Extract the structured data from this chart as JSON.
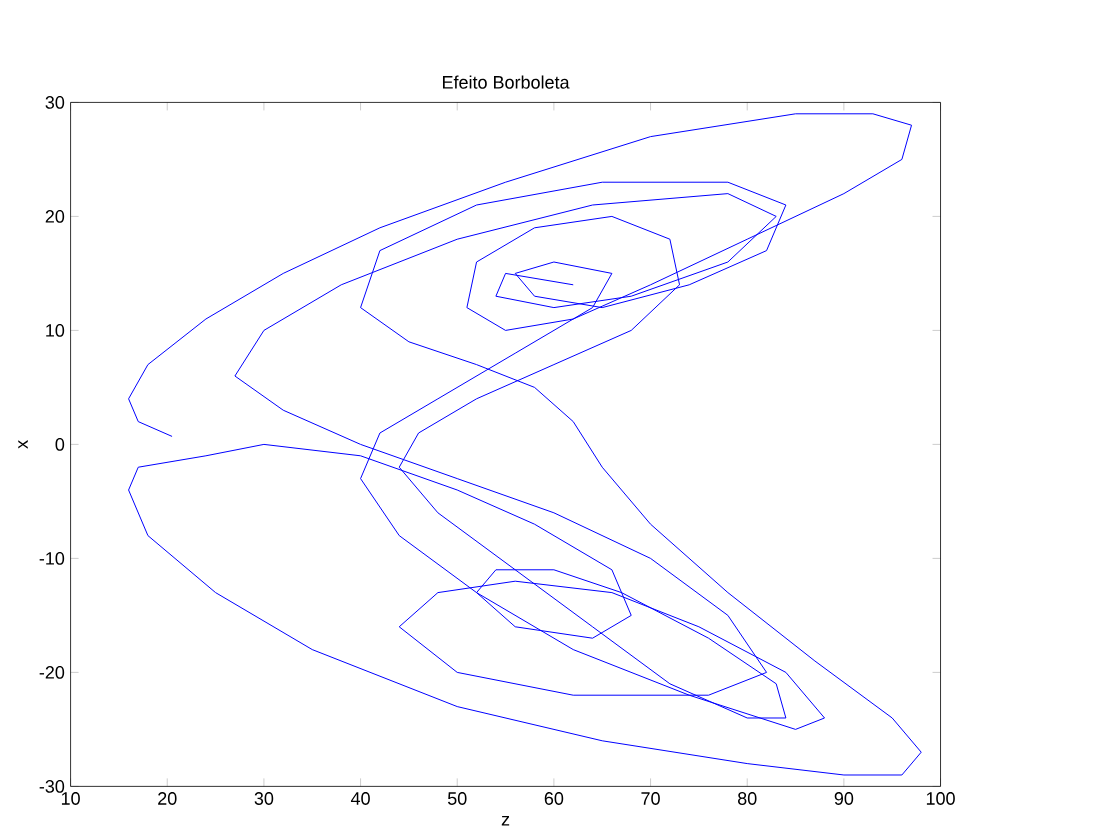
{
  "chart_data": {
    "type": "line",
    "title": "Efeito Borboleta",
    "xlabel": "z",
    "ylabel": "x",
    "xlim": [
      10,
      100
    ],
    "ylim": [
      -30,
      30
    ],
    "xticks": [
      10,
      20,
      30,
      40,
      50,
      60,
      70,
      80,
      90,
      100
    ],
    "yticks": [
      -30,
      -20,
      -10,
      0,
      10,
      20,
      30
    ],
    "series": [
      {
        "color": "#0000ff",
        "x": [
          20.5,
          17,
          16,
          18,
          24,
          32,
          42,
          55,
          70,
          85,
          93,
          97,
          96,
          90,
          80,
          70,
          62,
          55,
          51,
          52,
          58,
          66,
          72,
          73,
          68,
          60,
          52,
          46,
          44,
          48,
          56,
          64,
          72,
          80,
          84,
          83,
          76,
          67,
          60,
          54,
          52,
          56,
          64,
          68,
          66,
          58,
          50,
          40,
          30,
          24,
          17,
          16,
          18,
          25,
          35,
          50,
          65,
          80,
          90,
          96,
          98,
          95,
          87,
          78,
          70,
          65,
          62,
          58,
          52,
          45,
          40,
          42,
          52,
          65,
          78,
          84,
          82,
          74,
          65,
          58,
          56,
          60,
          66,
          64,
          56,
          48,
          42,
          40,
          44,
          52,
          62,
          74,
          85,
          88,
          84,
          75,
          66,
          56,
          48,
          44,
          50,
          62,
          76,
          82,
          78,
          70,
          60,
          50,
          40,
          32,
          27,
          30,
          38,
          50,
          64,
          78,
          83,
          78,
          68,
          60,
          54,
          55,
          62
        ],
        "values": [
          0.7,
          2,
          4,
          7,
          11,
          15,
          19,
          23,
          27,
          29,
          29,
          28,
          25,
          22,
          18,
          14,
          11,
          10,
          12,
          16,
          19,
          20,
          18,
          14,
          10,
          7,
          4,
          1,
          -2,
          -6,
          -11,
          -16,
          -21,
          -24,
          -24,
          -21,
          -17,
          -13,
          -11,
          -11,
          -13,
          -16,
          -17,
          -15,
          -11,
          -7,
          -4,
          -1,
          0,
          -1,
          -2,
          -4,
          -8,
          -13,
          -18,
          -23,
          -26,
          -28,
          -29,
          -29,
          -27,
          -24,
          -19,
          -13,
          -7,
          -2,
          2,
          5,
          7,
          9,
          12,
          17,
          21,
          23,
          23,
          21,
          17,
          14,
          12,
          13,
          15,
          16,
          15,
          12,
          8,
          4,
          1,
          -3,
          -8,
          -13,
          -18,
          -22,
          -25,
          -24,
          -20,
          -16,
          -13,
          -12,
          -13,
          -16,
          -20,
          -22,
          -22,
          -20,
          -15,
          -10,
          -6,
          -3,
          0,
          3,
          6,
          10,
          14,
          18,
          21,
          22,
          20,
          16,
          13,
          12,
          13,
          15,
          14
        ]
      }
    ]
  }
}
